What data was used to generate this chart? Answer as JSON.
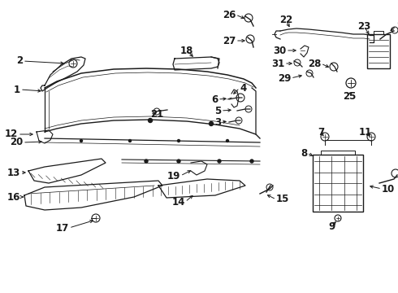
{
  "bg_color": "#ffffff",
  "line_color": "#1a1a1a",
  "font_size": 8.5,
  "figsize": [
    4.9,
    3.6
  ],
  "dpi": 100
}
